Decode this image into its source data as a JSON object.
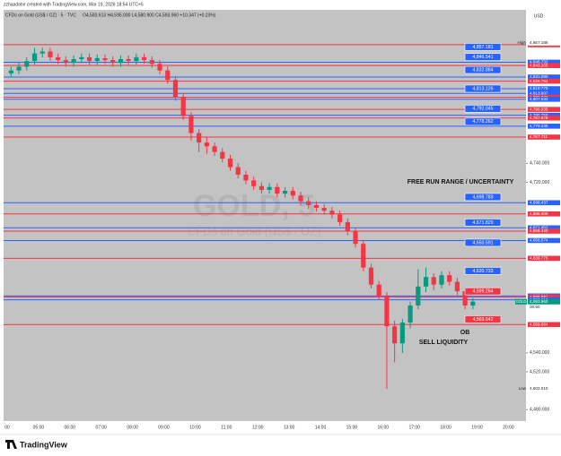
{
  "header": {
    "credit": "zzhaadahir created with TradingView.com, Mar 19, 2026 18:54 UTC+5",
    "symbol": "CFDs on Gold (US$ / OZ) · 5 · TVC",
    "ohlc": "O4,583.613 H4,595.000 L4,580.900 C4,593.960 +10.347 (+0.23%)",
    "currency": "USD"
  },
  "watermark": {
    "ticker": "GOLD, 5",
    "name": "CFDs on Gold (US$ / OZ)"
  },
  "footer": {
    "brand": "TradingView"
  },
  "chart_data": {
    "type": "candlestick",
    "ylim": [
      4468,
      4902
    ],
    "yticks": [
      {
        "value": 4740,
        "label": "4,740.000"
      },
      {
        "value": 4720,
        "label": "4,720.000"
      },
      {
        "value": 4540,
        "label": "4,540.000"
      },
      {
        "value": 4520,
        "label": "4,520.000"
      },
      {
        "value": 4480,
        "label": "4,480.000"
      }
    ],
    "xticks": [
      "00",
      "05:00",
      "06:00",
      "07:00",
      "08:00",
      "09:00",
      "10:00",
      "11:00",
      "12:00",
      "13:00",
      "14:00",
      "15:00",
      "16:00",
      "17:00",
      "18:00",
      "19:00",
      "20:00"
    ],
    "up_color": "#089981",
    "down_color": "#f23645",
    "open": [
      4835,
      4838,
      4842,
      4848,
      4856,
      4858,
      4852,
      4849,
      4846,
      4850,
      4852,
      4848,
      4851,
      4849,
      4846,
      4850,
      4848,
      4852,
      4849,
      4845,
      4838,
      4828,
      4810,
      4790,
      4772,
      4762,
      4758,
      4752,
      4745,
      4736,
      4728,
      4722,
      4716,
      4712,
      4715,
      4708,
      4711,
      4706,
      4700,
      4696,
      4693,
      4690,
      4686,
      4678,
      4668,
      4655,
      4630,
      4612,
      4600,
      4568,
      4550,
      4572,
      4590,
      4610,
      4620,
      4612,
      4622,
      4615,
      4605,
      4590
    ],
    "high": [
      4842,
      4846,
      4852,
      4862,
      4862,
      4862,
      4856,
      4853,
      4854,
      4856,
      4856,
      4855,
      4855,
      4853,
      4854,
      4854,
      4856,
      4856,
      4853,
      4849,
      4842,
      4832,
      4814,
      4794,
      4776,
      4768,
      4762,
      4756,
      4749,
      4740,
      4732,
      4726,
      4720,
      4719,
      4719,
      4715,
      4715,
      4710,
      4704,
      4700,
      4697,
      4694,
      4690,
      4682,
      4672,
      4659,
      4634,
      4616,
      4604,
      4574,
      4576,
      4594,
      4628,
      4630,
      4624,
      4626,
      4626,
      4619,
      4609,
      4598
    ],
    "low": [
      4831,
      4834,
      4838,
      4844,
      4852,
      4848,
      4845,
      4842,
      4842,
      4846,
      4844,
      4844,
      4845,
      4842,
      4842,
      4844,
      4844,
      4845,
      4841,
      4834,
      4824,
      4806,
      4786,
      4764,
      4752,
      4750,
      4748,
      4741,
      4732,
      4724,
      4718,
      4712,
      4708,
      4708,
      4704,
      4704,
      4702,
      4696,
      4692,
      4689,
      4686,
      4682,
      4674,
      4664,
      4651,
      4626,
      4608,
      4596,
      4502,
      4530,
      4540,
      4566,
      4586,
      4604,
      4606,
      4608,
      4611,
      4601,
      4586,
      4586
    ],
    "close": [
      4838,
      4842,
      4848,
      4856,
      4858,
      4852,
      4849,
      4846,
      4850,
      4852,
      4848,
      4851,
      4849,
      4846,
      4850,
      4848,
      4852,
      4849,
      4845,
      4838,
      4828,
      4810,
      4790,
      4772,
      4762,
      4758,
      4752,
      4745,
      4736,
      4728,
      4722,
      4716,
      4712,
      4715,
      4708,
      4711,
      4706,
      4700,
      4696,
      4693,
      4690,
      4686,
      4678,
      4668,
      4655,
      4630,
      4612,
      4600,
      4568,
      4550,
      4572,
      4590,
      4610,
      4620,
      4612,
      4622,
      4615,
      4605,
      4590,
      4594
    ],
    "levels": [
      {
        "value": 4865.188,
        "label": "4,865.188",
        "color": "#f23645"
      },
      {
        "value": 4846.732,
        "label": "4,846.732",
        "color": "#2962ff"
      },
      {
        "value": 4843.205,
        "label": "4,843.205",
        "color": "#f23645"
      },
      {
        "value": 4831.09,
        "label": "4,831.090",
        "color": "#2962ff"
      },
      {
        "value": 4826.754,
        "label": "4,826.754",
        "color": "#f23645"
      },
      {
        "value": 4818.77,
        "label": "4,818.770",
        "color": "#2962ff"
      },
      {
        "value": 4813.807,
        "label": "4,813.807",
        "color": "#2962ff"
      },
      {
        "value": 4809.779,
        "label": "4,809.779",
        "color": "#f23645"
      },
      {
        "value": 4807.633,
        "label": "4,807.633",
        "color": "#2962ff"
      },
      {
        "value": 4796.935,
        "label": "4,796.935",
        "color": "#f23645"
      },
      {
        "value": 4790.759,
        "label": "4,790.759",
        "color": "#2962ff"
      },
      {
        "value": 4787.878,
        "label": "4,787.878",
        "color": "#f23645"
      },
      {
        "value": 4779.235,
        "label": "4,779.235",
        "color": "#2962ff"
      },
      {
        "value": 4767.711,
        "label": "4,767.711",
        "color": "#f23645"
      },
      {
        "value": 4698.437,
        "label": "4,698.437",
        "color": "#2962ff"
      },
      {
        "value": 4686.608,
        "label": "4,686.608",
        "color": "#f23645"
      },
      {
        "value": 4671.952,
        "label": "4,671.952",
        "color": "#2962ff"
      },
      {
        "value": 4668.44,
        "label": "4,668.440",
        "color": "#f23645"
      },
      {
        "value": 4658.574,
        "label": "4,658.574",
        "color": "#2962ff"
      },
      {
        "value": 4639.775,
        "label": "4,639.775",
        "color": "#f23645"
      },
      {
        "value": 4600.06,
        "label": "4,600.060",
        "color": "#2962ff"
      },
      {
        "value": 4598.881,
        "label": "4,598.881",
        "color": "#f23645"
      },
      {
        "value": 4596.01,
        "label": "4,596.010",
        "color": "#2962ff"
      },
      {
        "value": 4569.864,
        "label": "4,569.864",
        "color": "#f23645"
      }
    ],
    "boxes": [
      {
        "value": 4857.181,
        "label": "4,857.181",
        "color": "#2962ff"
      },
      {
        "value": 4846.541,
        "label": "4,846.541",
        "color": "#2962ff"
      },
      {
        "value": 4832.884,
        "label": "4,832.884",
        "color": "#2962ff"
      },
      {
        "value": 4813.126,
        "label": "4,813.126",
        "color": "#2962ff"
      },
      {
        "value": 4792.045,
        "label": "4,792.045",
        "color": "#2962ff"
      },
      {
        "value": 4778.262,
        "label": "4,778.262",
        "color": "#2962ff"
      },
      {
        "value": 4698.783,
        "label": "4,698.783",
        "color": "#2962ff"
      },
      {
        "value": 4671.829,
        "label": "4,671.829",
        "color": "#2962ff"
      },
      {
        "value": 4650.591,
        "label": "4,650.591",
        "color": "#2962ff"
      },
      {
        "value": 4620.733,
        "label": "4,620.733",
        "color": "#2962ff"
      },
      {
        "value": 4599.264,
        "label": "4,599.264",
        "color": "#f23645"
      },
      {
        "value": 4569.642,
        "label": "4,569.642",
        "color": "#f23645"
      }
    ],
    "high_tag": {
      "caption": "High",
      "value": 4867.186,
      "label": "4,867.186"
    },
    "low_tag": {
      "caption": "Low",
      "value": 4502.01,
      "label": "4,502.010"
    },
    "last_tag": {
      "symbol": "GOLD",
      "value": 4593.96,
      "label": "4,593.960",
      "countdown": "00:50"
    },
    "annotations": [
      "FREE RUN RANGE / UNCERTAINTY",
      "OB",
      "SELL LIQUIDITY"
    ]
  }
}
